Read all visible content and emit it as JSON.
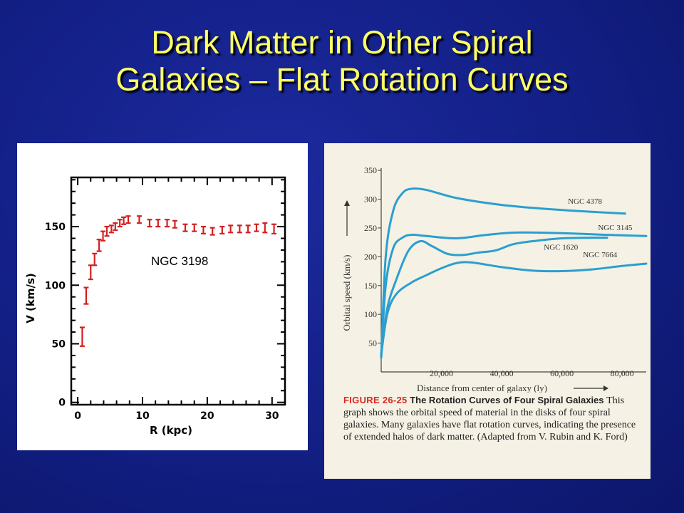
{
  "slide": {
    "title_line1": "Dark Matter in Other Spiral",
    "title_line2": "Galaxies – Flat Rotation Curves"
  },
  "chart_data": [
    {
      "type": "scatter",
      "label": "NGC 3198",
      "xlabel": "R (kpc)",
      "ylabel": "V (km/s)",
      "xlim": [
        -1,
        32
      ],
      "ylim": [
        -2,
        192
      ],
      "xticks": [
        0,
        10,
        20,
        30
      ],
      "yticks": [
        0,
        50,
        100,
        150
      ],
      "xtick_labels": [
        "0",
        "10",
        "20",
        "30"
      ],
      "ytick_labels": [
        "0",
        "50",
        "100",
        "150"
      ],
      "error_color": "#d42020",
      "points": [
        {
          "x": 0.7,
          "y": 56,
          "err": 8
        },
        {
          "x": 1.3,
          "y": 91,
          "err": 7
        },
        {
          "x": 2.0,
          "y": 111,
          "err": 6
        },
        {
          "x": 2.6,
          "y": 122,
          "err": 5
        },
        {
          "x": 3.3,
          "y": 134,
          "err": 5
        },
        {
          "x": 3.9,
          "y": 142,
          "err": 4
        },
        {
          "x": 4.5,
          "y": 146,
          "err": 4
        },
        {
          "x": 5.2,
          "y": 148,
          "err": 3
        },
        {
          "x": 5.8,
          "y": 150,
          "err": 3
        },
        {
          "x": 6.5,
          "y": 153,
          "err": 3
        },
        {
          "x": 7.1,
          "y": 155,
          "err": 3
        },
        {
          "x": 7.8,
          "y": 156,
          "err": 3
        },
        {
          "x": 9.5,
          "y": 156,
          "err": 3
        },
        {
          "x": 11.1,
          "y": 153,
          "err": 3
        },
        {
          "x": 12.4,
          "y": 153,
          "err": 3
        },
        {
          "x": 13.8,
          "y": 153,
          "err": 3
        },
        {
          "x": 15.0,
          "y": 152,
          "err": 3
        },
        {
          "x": 16.6,
          "y": 149,
          "err": 3
        },
        {
          "x": 18.0,
          "y": 149,
          "err": 3
        },
        {
          "x": 19.4,
          "y": 147,
          "err": 3
        },
        {
          "x": 20.8,
          "y": 146,
          "err": 3
        },
        {
          "x": 22.3,
          "y": 147,
          "err": 3
        },
        {
          "x": 23.6,
          "y": 148,
          "err": 3
        },
        {
          "x": 25.0,
          "y": 148,
          "err": 3
        },
        {
          "x": 26.3,
          "y": 148,
          "err": 3
        },
        {
          "x": 27.6,
          "y": 149,
          "err": 3
        },
        {
          "x": 28.9,
          "y": 149,
          "err": 4
        },
        {
          "x": 30.3,
          "y": 148,
          "err": 4
        }
      ]
    },
    {
      "type": "line",
      "xlabel": "Distance from center of galaxy (ly)",
      "ylabel": "Orbital speed (km/s)",
      "xlim": [
        0,
        88000
      ],
      "ylim": [
        0,
        360
      ],
      "xticks": [
        20000,
        40000,
        60000,
        80000
      ],
      "yticks": [
        50,
        100,
        150,
        200,
        250,
        300,
        350
      ],
      "xtick_labels": [
        "20,000",
        "40,000",
        "60,000",
        "80,000"
      ],
      "ytick_labels": [
        "50",
        "100",
        "150",
        "200",
        "250",
        "300",
        "350"
      ],
      "line_color": "#2a9fd0",
      "series": [
        {
          "name": "NGC 4378",
          "x": [
            0,
            1500,
            4000,
            7000,
            10000,
            15000,
            25000,
            40000,
            55000,
            70000,
            81000
          ],
          "values": [
            25,
            200,
            280,
            310,
            318,
            316,
            302,
            290,
            283,
            278,
            275
          ]
        },
        {
          "name": "NGC 3145",
          "x": [
            0,
            1500,
            4000,
            7000,
            10000,
            15000,
            25000,
            35000,
            45000,
            60000,
            75000,
            88000
          ],
          "values": [
            25,
            150,
            215,
            233,
            238,
            236,
            232,
            238,
            242,
            241,
            238,
            236
          ]
        },
        {
          "name": "NGC 1620",
          "x": [
            0,
            2000,
            5000,
            9000,
            13000,
            17000,
            22000,
            27000,
            32000,
            38000,
            44000,
            52000,
            60000,
            70000,
            75000
          ],
          "values": [
            30,
            110,
            160,
            210,
            227,
            218,
            205,
            203,
            207,
            211,
            222,
            228,
            232,
            233,
            233
          ]
        },
        {
          "name": "NGC 7664",
          "x": [
            0,
            2000,
            5000,
            10000,
            15000,
            20000,
            25000,
            30000,
            40000,
            50000,
            60000,
            70000,
            80000,
            88000
          ],
          "values": [
            30,
            100,
            135,
            155,
            168,
            180,
            189,
            190,
            182,
            176,
            175,
            178,
            184,
            188
          ]
        }
      ]
    }
  ],
  "figure": {
    "number": "FIGURE 26-25",
    "title": "The Rotation Curves of Four Spiral Galaxies",
    "text": "This graph shows the orbital speed of material in the disks of four spiral galaxies. Many galaxies have flat rotation curves, indicating the presence of extended halos of dark matter. (Adapted from V. Rubin and K. Ford)"
  }
}
